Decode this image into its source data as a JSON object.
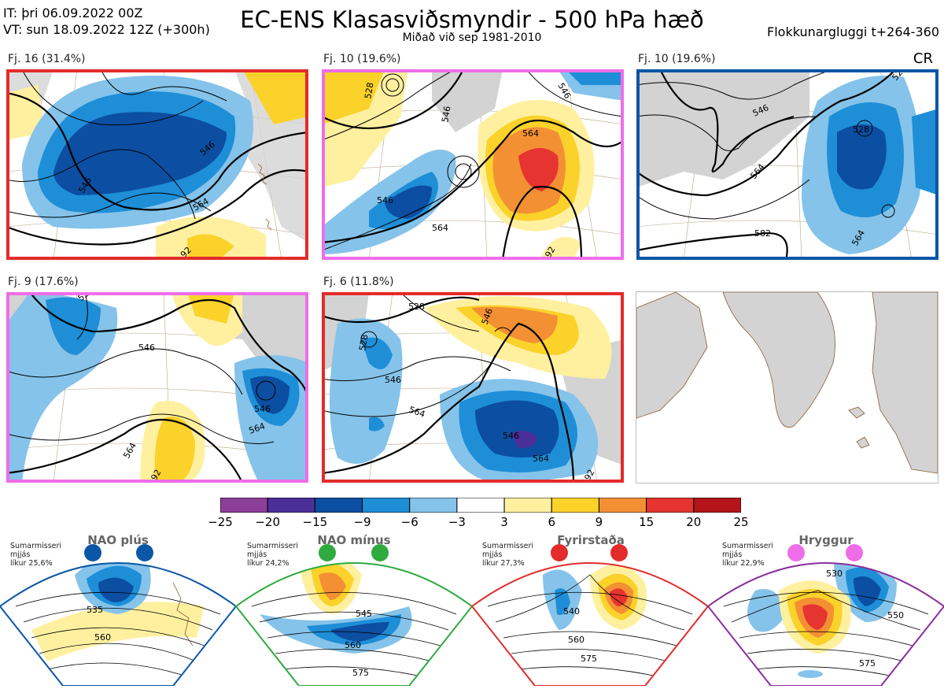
{
  "header": {
    "it_line": "IT: þri 06.09.2022 00Z",
    "vt_line": "VT: sun 18.09.2022 12Z  (+300h)",
    "title": "EC-ENS Klasasviðsmyndir - 500 hPa hæð",
    "subtitle": "Miðað við sep 1981-2010",
    "window": "Flokkunargluggi t+264-360"
  },
  "cr_label": "CR",
  "colors": {
    "cyan_border": "#e32b2b",
    "pink_border": "#ee6de8",
    "blue_border": "#0b56a6",
    "green_border": "#2eaa3e",
    "purple_border": "#8a2e9e"
  },
  "panels": [
    {
      "label": "Fj. 16 (31.4%)",
      "border": "#e32b2b",
      "contours": [
        "546",
        "564",
        "546",
        "92"
      ]
    },
    {
      "label": "Fj. 10 (19.6%)",
      "border": "#ee6de8",
      "contours": [
        "528",
        "546",
        "546",
        "564",
        "564",
        "92",
        "546"
      ]
    },
    {
      "label": "Fj. 10 (19.6%)",
      "border": "#0b56a6",
      "contours": [
        "528",
        "546",
        "564",
        "582",
        "564",
        "528"
      ]
    },
    {
      "label": "Fj. 9 (17.6%)",
      "border": "#ee6de8",
      "contours": [
        "528",
        "546",
        "546",
        "564",
        "564",
        "92"
      ]
    },
    {
      "label": "Fj. 6 (11.8%)",
      "border": "#e32b2b",
      "contours": [
        "528",
        "528",
        "546",
        "546",
        "564",
        "546",
        "564",
        "92"
      ]
    }
  ],
  "chart_data": {
    "type": "heatmap",
    "title": "EC-ENS Klasasviðsmyndir - 500 hPa hæð",
    "variable": "500 hPa height anomaly (dam) with height contours",
    "colorbar": {
      "ticks": [
        "−25",
        "−20",
        "−15",
        "−9",
        "−6",
        "−3",
        "3",
        "6",
        "9",
        "15",
        "20",
        "25"
      ],
      "bins": [
        {
          "from": -25,
          "to": -20,
          "color": "#8c3f98"
        },
        {
          "from": -20,
          "to": -15,
          "color": "#4b2f99"
        },
        {
          "from": -15,
          "to": -9,
          "color": "#0c4ea1"
        },
        {
          "from": -9,
          "to": -6,
          "color": "#1e8ed7"
        },
        {
          "from": -6,
          "to": -3,
          "color": "#85c3ea"
        },
        {
          "from": -3,
          "to": 3,
          "color": "#ffffff"
        },
        {
          "from": 3,
          "to": 6,
          "color": "#fff0a0"
        },
        {
          "from": 6,
          "to": 9,
          "color": "#fbd22a"
        },
        {
          "from": 9,
          "to": 15,
          "color": "#f39034"
        },
        {
          "from": 15,
          "to": 20,
          "color": "#e63430"
        },
        {
          "from": 20,
          "to": 25,
          "color": "#b3151a"
        }
      ]
    },
    "clusters": [
      {
        "name": "Fj. 16",
        "members": 16,
        "percent": 31.4
      },
      {
        "name": "Fj. 10",
        "members": 10,
        "percent": 19.6
      },
      {
        "name": "Fj. 10",
        "members": 10,
        "percent": 19.6
      },
      {
        "name": "Fj. 9",
        "members": 9,
        "percent": 17.6
      },
      {
        "name": "Fj. 6",
        "members": 6,
        "percent": 11.8
      }
    ],
    "regimes": [
      {
        "name": "NAO plús",
        "stat1": "Sumarmisseri",
        "stat2": "mjjás",
        "stat3": "líkur 25,6%",
        "probability": 25.6,
        "dot_color": "#0b56a6",
        "border": "#0b56a6",
        "contours": [
          "535",
          "560"
        ]
      },
      {
        "name": "NAO mínus",
        "stat1": "Sumarmisseri",
        "stat2": "mjjás",
        "stat3": "líkur 24,2%",
        "probability": 24.2,
        "dot_color": "#2eaa3e",
        "border": "#2eaa3e",
        "contours": [
          "545",
          "560",
          "575"
        ]
      },
      {
        "name": "Fyrirstaða",
        "stat1": "Sumarmisseri",
        "stat2": "mjjás",
        "stat3": "líkur 27,3%",
        "probability": 27.3,
        "dot_color": "#e32b2b",
        "border": "#e32b2b",
        "contours": [
          "540",
          "560",
          "575"
        ]
      },
      {
        "name": "Hryggur",
        "stat1": "Sumarmisseri",
        "stat2": "mjjás",
        "stat3": "líkur 22,9%",
        "probability": 22.9,
        "dot_color": "#ee6de8",
        "border": "#8a2e9e",
        "contours": [
          "530",
          "550",
          "575"
        ]
      }
    ]
  }
}
